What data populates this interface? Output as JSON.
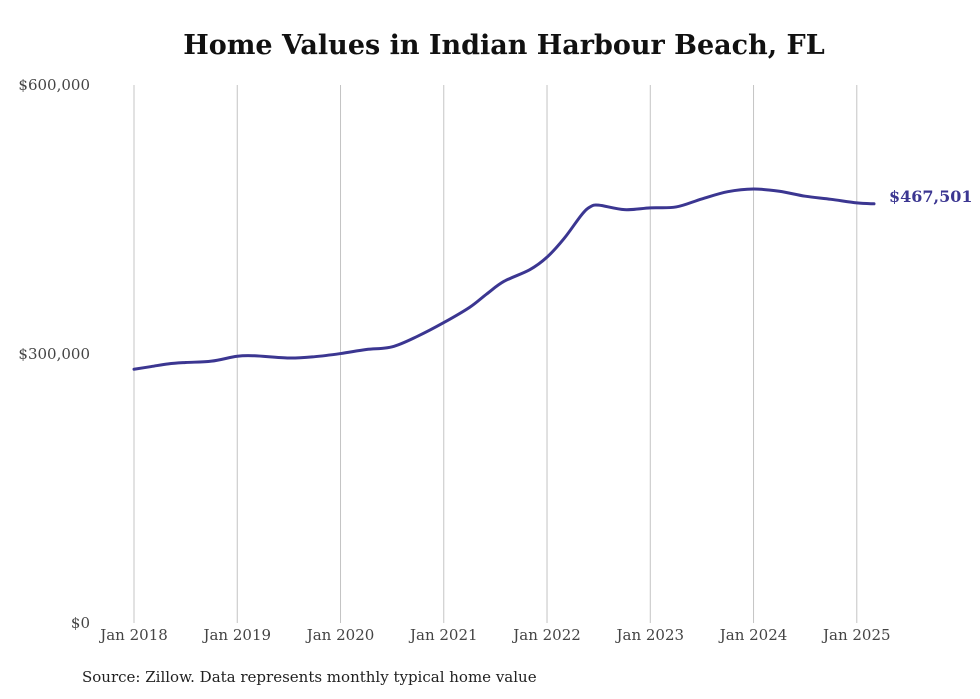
{
  "chart_data": {
    "type": "line",
    "title": "Home Values in Indian Harbour Beach, FL",
    "source": "Source: Zillow. Data represents monthly typical home value",
    "xlabel": "",
    "ylabel": "",
    "x_range": [
      "2018-01",
      "2025-03"
    ],
    "ylim": [
      0,
      600000
    ],
    "y_ticks": [
      {
        "value": 0,
        "label": "$0"
      },
      {
        "value": 300000,
        "label": "$300,000"
      },
      {
        "value": 600000,
        "label": "$600,000"
      }
    ],
    "x_ticks": [
      {
        "date": "2018-01",
        "label": "Jan 2018"
      },
      {
        "date": "2019-01",
        "label": "Jan 2019"
      },
      {
        "date": "2020-01",
        "label": "Jan 2020"
      },
      {
        "date": "2021-01",
        "label": "Jan 2021"
      },
      {
        "date": "2022-01",
        "label": "Jan 2022"
      },
      {
        "date": "2023-01",
        "label": "Jan 2023"
      },
      {
        "date": "2024-01",
        "label": "Jan 2024"
      },
      {
        "date": "2025-01",
        "label": "Jan 2025"
      }
    ],
    "grid": {
      "vertical": true,
      "horizontal": false
    },
    "legend": "none",
    "line_color": "#3b3691",
    "end_label": "$467,501",
    "series": [
      {
        "points": [
          {
            "date": "2018-01",
            "value": 283000
          },
          {
            "date": "2018-03",
            "value": 286000
          },
          {
            "date": "2018-05",
            "value": 289000
          },
          {
            "date": "2018-07",
            "value": 290500
          },
          {
            "date": "2018-10",
            "value": 292000
          },
          {
            "date": "2019-01",
            "value": 297500
          },
          {
            "date": "2019-03",
            "value": 298000
          },
          {
            "date": "2019-07",
            "value": 295500
          },
          {
            "date": "2019-10",
            "value": 297000
          },
          {
            "date": "2020-01",
            "value": 300500
          },
          {
            "date": "2020-04",
            "value": 305000
          },
          {
            "date": "2020-07",
            "value": 308000
          },
          {
            "date": "2020-10",
            "value": 320000
          },
          {
            "date": "2021-01",
            "value": 335000
          },
          {
            "date": "2021-04",
            "value": 352000
          },
          {
            "date": "2021-06",
            "value": 367000
          },
          {
            "date": "2021-08",
            "value": 381000
          },
          {
            "date": "2021-11",
            "value": 394000
          },
          {
            "date": "2022-01",
            "value": 408000
          },
          {
            "date": "2022-03",
            "value": 429000
          },
          {
            "date": "2022-05",
            "value": 455000
          },
          {
            "date": "2022-06",
            "value": 464000
          },
          {
            "date": "2022-07",
            "value": 466000
          },
          {
            "date": "2022-10",
            "value": 461000
          },
          {
            "date": "2023-01",
            "value": 463000
          },
          {
            "date": "2023-04",
            "value": 464000
          },
          {
            "date": "2023-07",
            "value": 473000
          },
          {
            "date": "2023-10",
            "value": 481000
          },
          {
            "date": "2024-01",
            "value": 484000
          },
          {
            "date": "2024-04",
            "value": 481500
          },
          {
            "date": "2024-07",
            "value": 476000
          },
          {
            "date": "2024-10",
            "value": 472500
          },
          {
            "date": "2025-01",
            "value": 468500
          },
          {
            "date": "2025-03",
            "value": 467501
          }
        ]
      }
    ]
  }
}
